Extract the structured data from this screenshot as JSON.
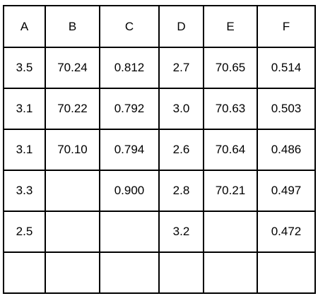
{
  "table": {
    "headers": [
      "A",
      "B",
      "C",
      "D",
      "E",
      "F"
    ],
    "rows": [
      [
        "3.5",
        "70.24",
        "0.812",
        "2.7",
        "70.65",
        "0.514"
      ],
      [
        "3.1",
        "70.22",
        "0.792",
        "3.0",
        "70.63",
        "0.503"
      ],
      [
        "3.1",
        "70.10",
        "0.794",
        "2.6",
        "70.64",
        "0.486"
      ],
      [
        "3.3",
        "",
        "0.900",
        "2.8",
        "70.21",
        "0.497"
      ],
      [
        "2.5",
        "",
        "",
        "3.2",
        "",
        "0.472"
      ],
      [
        "",
        "",
        "",
        "",
        "",
        ""
      ]
    ]
  }
}
